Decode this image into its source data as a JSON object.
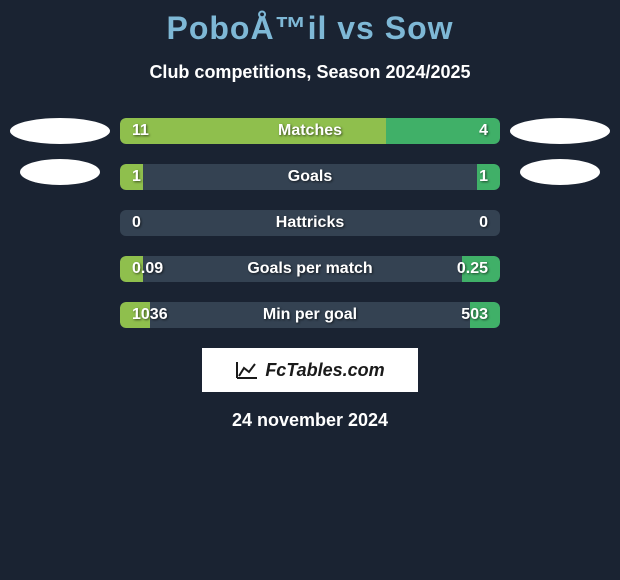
{
  "title": "PoboÅ™il vs Sow",
  "subtitle": "Club competitions, Season 2024/2025",
  "date": "24 november 2024",
  "logo_text": "FcTables.com",
  "colors": {
    "background": "#1a2332",
    "bar_base": "#344252",
    "left_fill": "#8fbf4d",
    "right_fill": "#40b068",
    "title_accent": "#7eb8d6",
    "text": "#ffffff"
  },
  "player_left": {
    "name": "PoboÅ™il"
  },
  "player_right": {
    "name": "Sow"
  },
  "stats": [
    {
      "label": "Matches",
      "left_value": "11",
      "right_value": "4",
      "left_pct": 70,
      "right_pct": 30,
      "left_color": "#8fbf4d",
      "right_color": "#40b068"
    },
    {
      "label": "Goals",
      "left_value": "1",
      "right_value": "1",
      "left_pct": 6,
      "right_pct": 6,
      "left_color": "#8fbf4d",
      "right_color": "#40b068"
    },
    {
      "label": "Hattricks",
      "left_value": "0",
      "right_value": "0",
      "left_pct": 0,
      "right_pct": 0,
      "left_color": "#8fbf4d",
      "right_color": "#40b068"
    },
    {
      "label": "Goals per match",
      "left_value": "0.09",
      "right_value": "0.25",
      "left_pct": 6,
      "right_pct": 10,
      "left_color": "#8fbf4d",
      "right_color": "#40b068"
    },
    {
      "label": "Min per goal",
      "left_value": "1036",
      "right_value": "503",
      "left_pct": 8,
      "right_pct": 8,
      "left_color": "#8fbf4d",
      "right_color": "#40b068"
    }
  ]
}
